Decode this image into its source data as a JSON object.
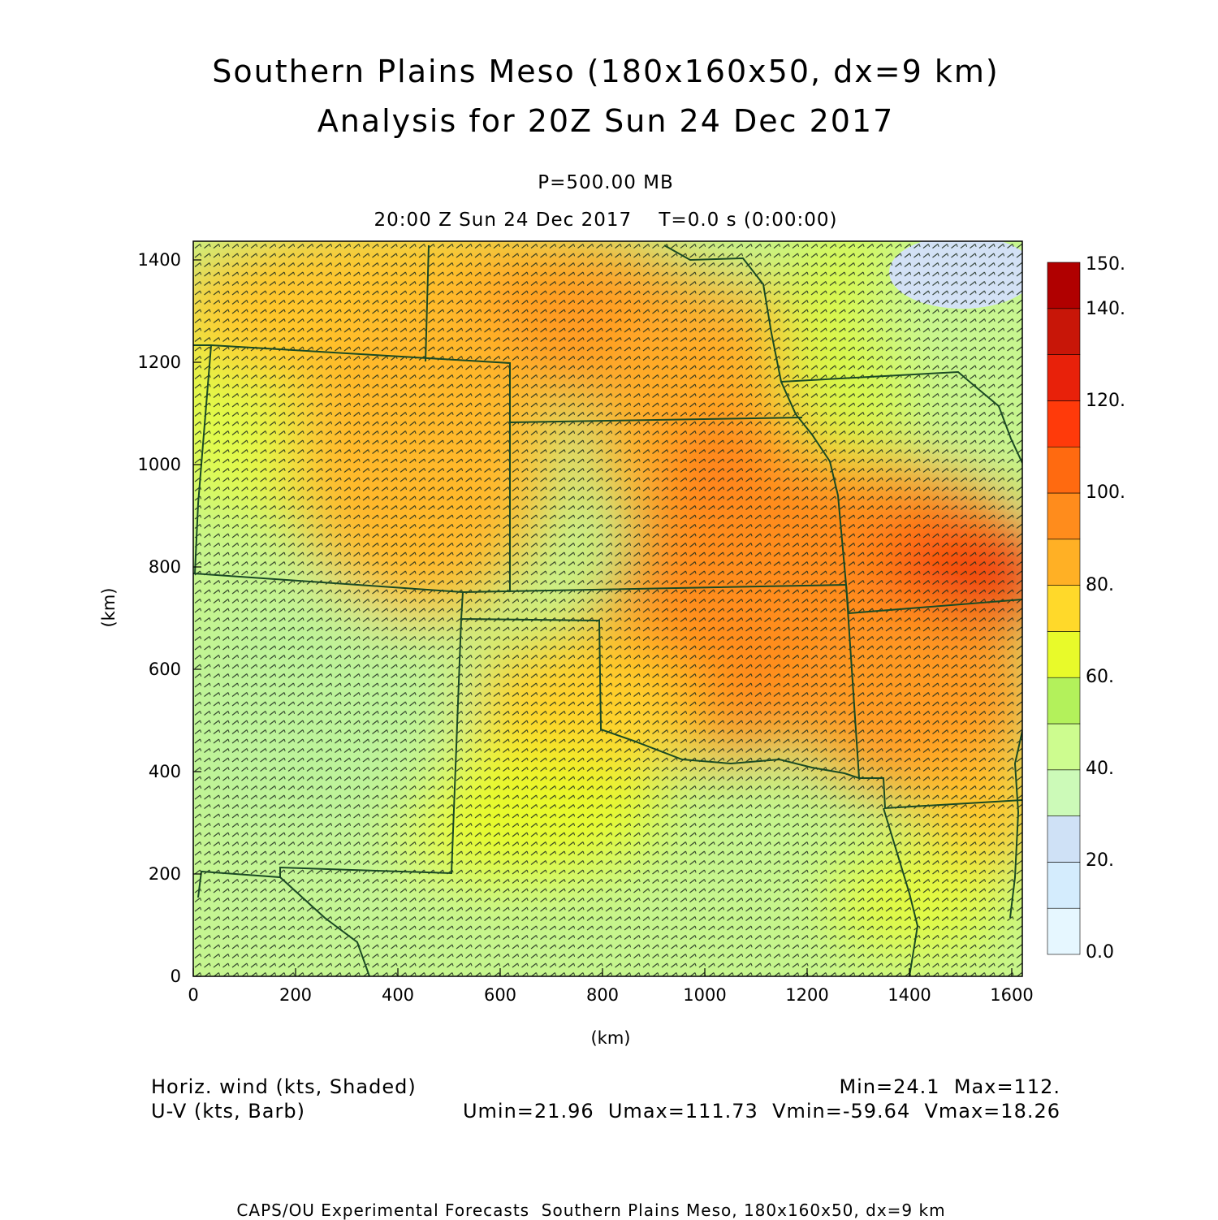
{
  "title": {
    "line1": "Southern Plains Meso (180x160x50, dx=9 km)",
    "line2": "Analysis for 20Z Sun 24 Dec 2017"
  },
  "subtitle": {
    "level": "P=500.00 MB",
    "time": "20:00 Z Sun 24 Dec 2017    T=0.0 s (0:00:00)"
  },
  "axes": {
    "x_label": "(km)",
    "y_label": "(km)",
    "x_ticks": [
      "0",
      "200",
      "400",
      "600",
      "800",
      "1000",
      "1200",
      "1400",
      "1600"
    ],
    "y_ticks": [
      "0",
      "200",
      "400",
      "600",
      "800",
      "1000",
      "1200",
      "1400"
    ],
    "x_range_km": [
      0,
      1620
    ],
    "y_range_km": [
      0,
      1440
    ]
  },
  "colorbar": {
    "labels": [
      "0.0",
      "20.",
      "40.",
      "60.",
      "80.",
      "100.",
      "120.",
      "140.",
      "150."
    ],
    "colors": [
      "#e6f7ff",
      "#d4ecfd",
      "#cfe1f6",
      "#ccfab8",
      "#cdfc8f",
      "#b3f15b",
      "#e8fa2a",
      "#ffd92a",
      "#ffb025",
      "#ff8c1c",
      "#ff6a10",
      "#ff3a0a",
      "#e8210a",
      "#c81608",
      "#b00000"
    ]
  },
  "legend": {
    "shaded": "Horiz. wind (kts, Shaded)",
    "barb": "U-V (kts, Barb)",
    "minmax": "Min=24.1  Max=112.",
    "uv_minmax": "Umin=21.96  Umax=111.73  Vmin=-59.64  Vmax=18.26"
  },
  "footer": "CAPS/OU Experimental Forecasts  Southern Plains Meso, 180x160x50, dx=9 km",
  "chart_data": {
    "type": "heatmap",
    "field": "Horizontal wind speed at 500 mb (kts)",
    "min": 24.1,
    "max": 112,
    "u_min": 21.96,
    "u_max": 111.73,
    "v_min": -59.64,
    "v_max": 18.26,
    "scale_range": [
      0,
      150
    ],
    "grid": true
  }
}
